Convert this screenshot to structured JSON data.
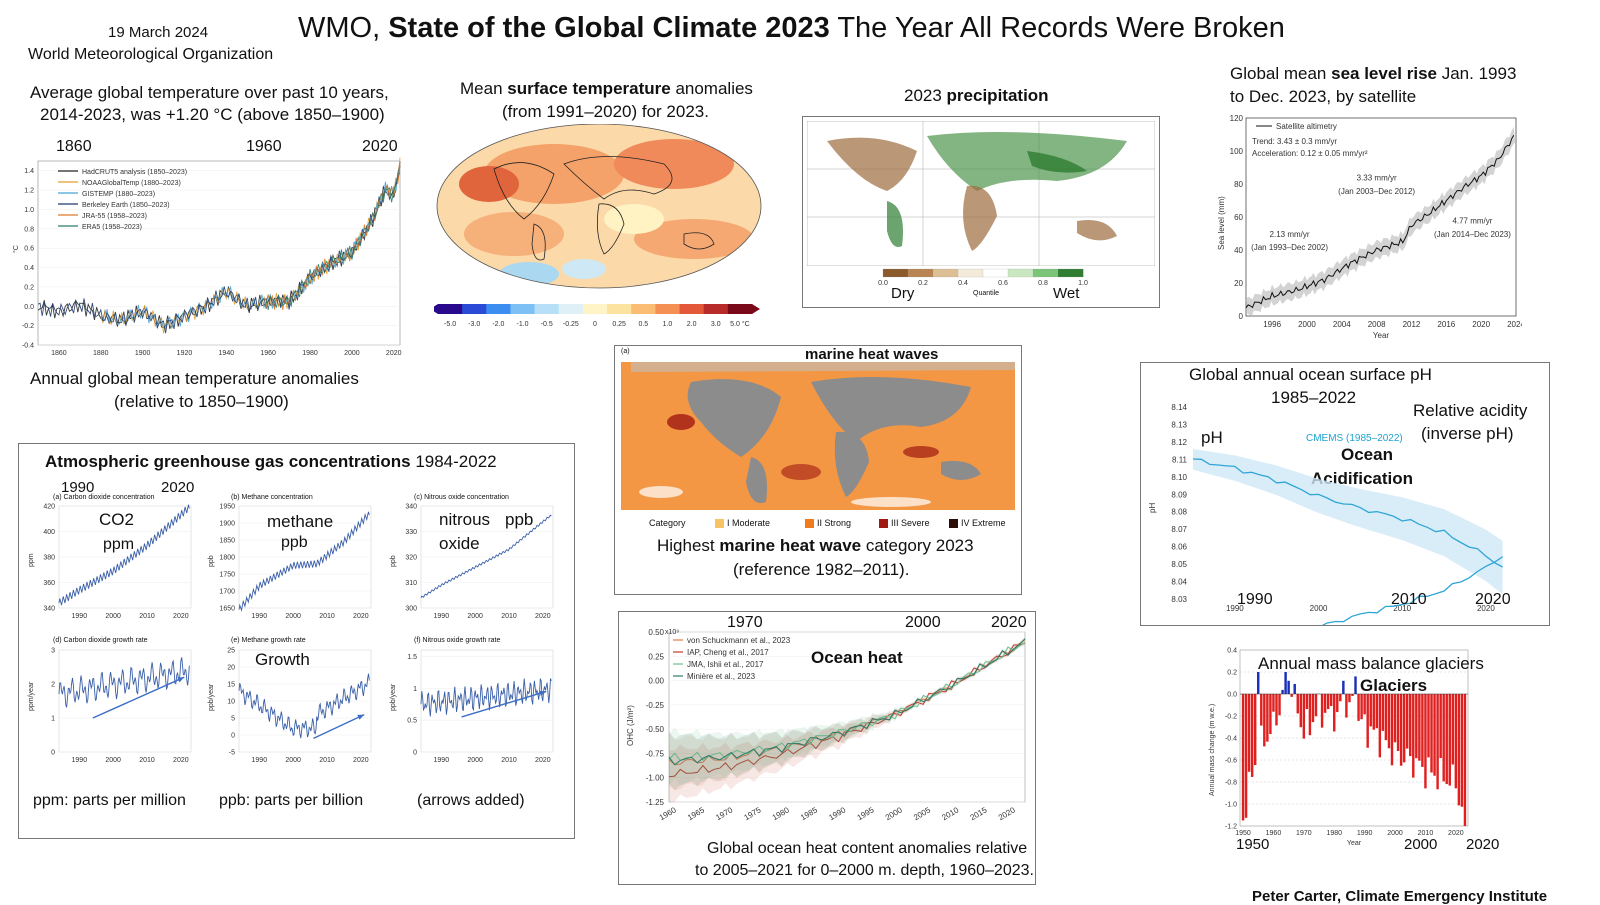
{
  "header": {
    "date": "19 March 2024",
    "org": "World Meteorological Organization",
    "title_pre": "WMO, ",
    "title_bold": "State of the Global Climate 2023",
    "title_post": " The Year All Records Were Broken"
  },
  "temp_panel": {
    "caption1": "Average global temperature over past 10 years,",
    "caption2": "2014-2023, was +1.20 °C (above 1850–1900)",
    "year_labels": [
      "1860",
      "1960",
      "2020"
    ],
    "legend": [
      "HadCRUT5 analysis (1850–2023)",
      "NOAAGlobalTemp (1880–2023)",
      "GISTEMP (1880–2023)",
      "Berkeley Earth (1850–2023)",
      "JRA-55 (1958–2023)",
      "ERA5 (1958–2023)"
    ],
    "ylabel": "°C",
    "below1": "Annual global mean temperature anomalies",
    "below2": "(relative to 1850–1900)"
  },
  "map_panel": {
    "title_pre": "Mean ",
    "title_bold": "surface temperature",
    "title_post": " anomalies",
    "title2": "(from 1991–2020) for 2023.",
    "ticks": [
      "-5.0",
      "-3.0",
      "-2.0",
      "-1.0",
      "-0.5",
      "-0.25",
      "0",
      "0.25",
      "0.5",
      "1.0",
      "2.0",
      "3.0",
      "5.0 °C"
    ]
  },
  "precip_panel": {
    "title_pre": "2023 ",
    "title_bold": "precipitation",
    "dry": "Dry",
    "wet": "Wet",
    "quantile": "Quantile",
    "ticks": [
      "0.0",
      "0.2",
      "0.4",
      "0.6",
      "0.8",
      "1.0"
    ]
  },
  "sealevel_panel": {
    "title_pre": "Global mean ",
    "title_bold": "sea level rise",
    "title_post": " Jan. 1993",
    "title2": "to Dec. 2023, by satellite",
    "legend": "Satellite altimetry",
    "trend": "Trend: 3.43 ± 0.3 mm/yr",
    "accel": "Acceleration: 0.12 ± 0.05 mm/yr²",
    "r1": "2.13 mm/yr",
    "p1": "(Jan 1993–Dec 2002)",
    "r2": "3.33 mm/yr",
    "p2": "(Jan 2003–Dec 2012)",
    "r3": "4.77 mm/yr",
    "p3": "(Jan 2014–Dec 2023)",
    "ylabel": "Sea level (mm)",
    "xlabel": "Year"
  },
  "marine_panel": {
    "title": "marine  heat waves",
    "panel_tag": "(a)",
    "category": "Category",
    "cats": [
      "I Moderate",
      "II Strong",
      "III Severe",
      "IV Extreme"
    ],
    "cat_colors": [
      "#f7c463",
      "#f07b1e",
      "#a01a12",
      "#2a0c08"
    ],
    "cap_pre": "Highest ",
    "cap_b1": "marine  heat wave",
    "cap_post": " category  2023",
    "cap2": "(reference 1982–2011)."
  },
  "ph_panel": {
    "title1": "Global annual ocean surface pH",
    "title2": "1985–2022",
    "rel1": "Relative acidity",
    "rel2": "(inverse pH)",
    "ph": "pH",
    "cmems": "CMEMS (1985–2022)",
    "oa1": "Ocean",
    "oa2": "Acidification",
    "ylabel": "pH",
    "big_years": [
      "1990",
      "2010",
      "2020"
    ]
  },
  "ghg_panel": {
    "title_bold": "Atmospheric greenhouse gas concentrations",
    "title_post": "  1984-2022",
    "y1990": "1990",
    "y2020": "2020",
    "sub_a": "(a)    Carbon dioxide concentration",
    "sub_b": "(b)    Methane concentration",
    "sub_c": "(c)    Nitrous oxide concentration",
    "sub_d": "(d)    Carbon dioxide growth rate",
    "sub_e": "(e)    Methane growth rate",
    "sub_f": "(f)    Nitrous oxide growth rate",
    "co2": "CO2",
    "ppm": "ppm",
    "methane": "methane",
    "ppb": "ppb",
    "nitrous": "nitrous",
    "ppb2": "ppb",
    "oxide": "oxide",
    "growth": "Growth",
    "yl_ppm": "ppm",
    "yl_ppb": "ppb",
    "yl_ppb2": "ppb",
    "yl_ppmyr": "ppm/year",
    "yl_ppbyr": "ppb/year",
    "yl_ppbyr2": "ppb/year",
    "foot1": "ppm: parts per million",
    "foot2": "ppb: parts per billion",
    "foot3": "(arrows added)"
  },
  "ohc_panel": {
    "years": [
      "1970",
      "2000",
      "2020"
    ],
    "title": "Ocean heat",
    "scale": "x10⁹",
    "legend": [
      "von Schuckmann et al., 2023",
      "IAP, Cheng et al., 2017",
      "JMA, Ishii et al., 2017",
      "Minière et al., 2023"
    ],
    "legend_colors": [
      "#e07a4a",
      "#c0392b",
      "#6fbf8f",
      "#2a7a6a"
    ],
    "ylabel": "OHC (J/m²)",
    "cap1": "Global ocean heat content anomalies relative",
    "cap2": "to 2005–2021 for 0–2000 m. depth, 1960–2023."
  },
  "glacier_panel": {
    "title": "Annual mass balance glaciers",
    "glaciers": "Glaciers",
    "ylabel": "Annual mass change (m w.e.)",
    "xlabel": "Year",
    "big_years": [
      "1950",
      "2000",
      "2020"
    ]
  },
  "credit": "Peter Carter, Climate Emergency Institute",
  "chart_data": [
    {
      "type": "line",
      "title": "Annual global mean temperature anomalies",
      "ylabel": "°C",
      "xlim": [
        1850,
        2023
      ],
      "ylim": [
        -0.4,
        1.5
      ],
      "series": [
        {
          "name": "HadCRUT5 analysis (1850–2023)",
          "x": [
            1850,
            1860,
            1870,
            1880,
            1890,
            1900,
            1910,
            1920,
            1930,
            1940,
            1950,
            1960,
            1970,
            1980,
            1990,
            2000,
            2010,
            2016,
            2020,
            2023
          ],
          "values": [
            0.0,
            -0.05,
            0.02,
            -0.1,
            -0.15,
            -0.05,
            -0.2,
            -0.1,
            0.0,
            0.15,
            0.0,
            0.05,
            0.05,
            0.3,
            0.45,
            0.55,
            0.9,
            1.2,
            1.15,
            1.45
          ]
        }
      ]
    },
    {
      "type": "line",
      "title": "Global mean sea level rise Jan. 1993 to Dec. 2023, by satellite",
      "xlabel": "Year",
      "ylabel": "Sea level (mm)",
      "xlim": [
        1993,
        2024
      ],
      "ylim": [
        0,
        120
      ],
      "series": [
        {
          "name": "Satellite altimetry",
          "x": [
            1993,
            1996,
            1999,
            2002,
            2005,
            2008,
            2011,
            2012,
            2014,
            2016,
            2018,
            2020,
            2022,
            2023.9
          ],
          "values": [
            5,
            12,
            16,
            22,
            32,
            40,
            45,
            55,
            62,
            70,
            78,
            85,
            95,
            110
          ]
        }
      ]
    },
    {
      "type": "line",
      "title": "Global annual ocean surface pH 1985–2022",
      "ylabel": "pH",
      "xlim": [
        1985,
        2023
      ],
      "ylim": [
        8.03,
        8.14
      ],
      "series": [
        {
          "name": "CMEMS (1985–2022)",
          "x": [
            1985,
            1990,
            1995,
            2000,
            2005,
            2010,
            2015,
            2020,
            2022
          ],
          "values": [
            8.11,
            8.105,
            8.098,
            8.089,
            8.082,
            8.076,
            8.068,
            8.055,
            8.048
          ]
        }
      ]
    },
    {
      "type": "line",
      "title": "Carbon dioxide concentration",
      "ylabel": "ppm",
      "xlim": [
        1984,
        2022
      ],
      "ylim": [
        340,
        420
      ],
      "series": [
        {
          "x": [
            1984,
            1990,
            2000,
            2010,
            2022
          ],
          "values": [
            344,
            354,
            369,
            389,
            418
          ]
        }
      ]
    },
    {
      "type": "line",
      "title": "Methane concentration",
      "ylabel": "ppb",
      "xlim": [
        1984,
        2022
      ],
      "ylim": [
        1650,
        1950
      ],
      "series": [
        {
          "x": [
            1984,
            1990,
            2000,
            2007,
            2015,
            2022
          ],
          "values": [
            1645,
            1715,
            1775,
            1780,
            1845,
            1923
          ]
        }
      ]
    },
    {
      "type": "line",
      "title": "Nitrous oxide concentration",
      "ylabel": "ppb",
      "xlim": [
        1984,
        2022
      ],
      "ylim": [
        300,
        340
      ],
      "series": [
        {
          "x": [
            1984,
            1990,
            2000,
            2010,
            2022
          ],
          "values": [
            304,
            309,
            316,
            323,
            336
          ]
        }
      ]
    },
    {
      "type": "line",
      "title": "Ocean heat content anomalies",
      "ylabel": "OHC (J/m²)",
      "xlim": [
        1960,
        2023
      ],
      "ylim": [
        -1.25,
        0.5
      ],
      "series": [
        {
          "name": "von Schuckmann et al., 2023",
          "x": [
            1960,
            1970,
            1980,
            1990,
            2000,
            2010,
            2023
          ],
          "values": [
            -0.85,
            -0.8,
            -0.7,
            -0.55,
            -0.35,
            -0.05,
            0.4
          ]
        }
      ]
    },
    {
      "type": "bar",
      "title": "Annual mass balance glaciers",
      "xlabel": "Year",
      "ylabel": "Annual mass change (m w.e.)",
      "ylim": [
        -1.2,
        0.4
      ],
      "x": [
        1950,
        1955,
        1960,
        1965,
        1970,
        1975,
        1980,
        1985,
        1990,
        1995,
        2000,
        2005,
        2010,
        2015,
        2020,
        2023
      ],
      "values": [
        -1.1,
        -0.5,
        -0.3,
        0.15,
        -0.35,
        -0.15,
        -0.2,
        -0.1,
        -0.3,
        -0.4,
        -0.55,
        -0.6,
        -0.7,
        -0.75,
        -0.8,
        -1.2
      ]
    }
  ]
}
